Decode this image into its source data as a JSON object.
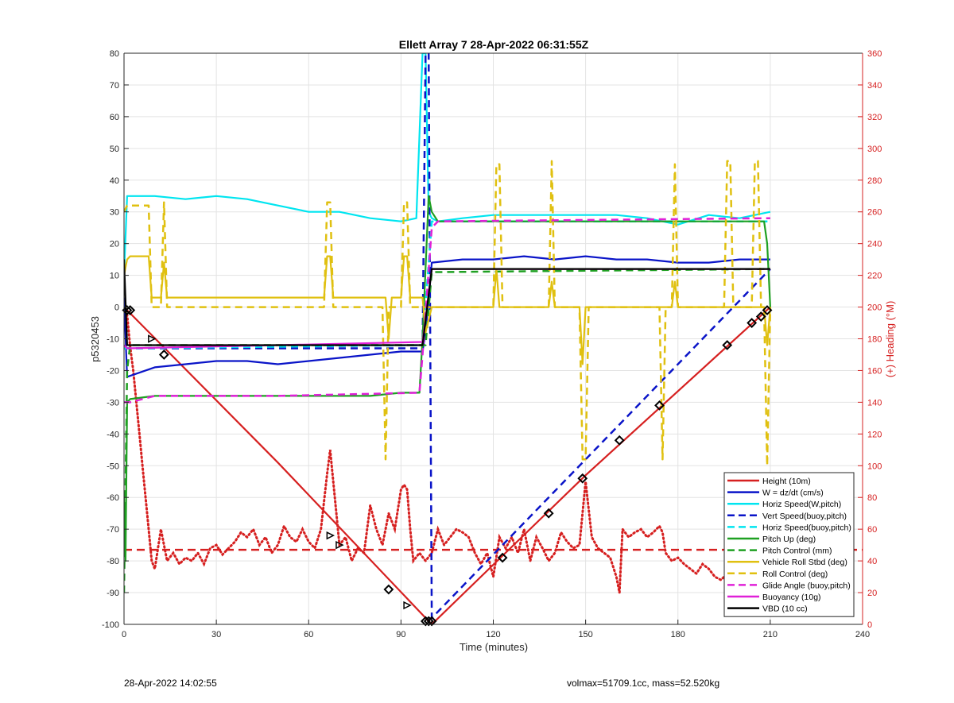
{
  "chart_data": {
    "type": "line",
    "title": "Ellett Array 7 28-Apr-2022 06:31:55Z",
    "xlabel": "Time (minutes)",
    "ylabel": "p5320453",
    "y2label": "(+) Heading (°M)",
    "xlim": [
      0,
      240
    ],
    "ylim": [
      -100,
      80
    ],
    "y2lim": [
      0,
      360
    ],
    "xticks": [
      "0",
      "30",
      "60",
      "90",
      "120",
      "150",
      "180",
      "210",
      "240"
    ],
    "yticks": [
      "-100",
      "-90",
      "-80",
      "-70",
      "-60",
      "-50",
      "-40",
      "-30",
      "-20",
      "-10",
      "0",
      "10",
      "20",
      "30",
      "40",
      "50",
      "60",
      "70",
      "80"
    ],
    "y2ticks": [
      "0",
      "20",
      "40",
      "60",
      "80",
      "100",
      "120",
      "140",
      "160",
      "180",
      "200",
      "220",
      "240",
      "260",
      "280",
      "300",
      "320",
      "340",
      "360"
    ],
    "grid": true,
    "legend_position": "bottom-right",
    "series": [
      {
        "name": "Height (10m)",
        "color": "#d62020",
        "style": "solid",
        "x": [
          0,
          1,
          50,
          99,
          100,
          150,
          210
        ],
        "y": [
          0,
          -1,
          -49,
          -99,
          -100,
          -53,
          0
        ]
      },
      {
        "name": "W = dz/dt (cm/s)",
        "color": "#0a14c8",
        "style": "solid",
        "x": [
          0,
          1,
          10,
          20,
          30,
          40,
          50,
          60,
          70,
          80,
          90,
          97,
          98,
          100,
          110,
          120,
          130,
          140,
          150,
          160,
          170,
          180,
          190,
          200,
          210
        ],
        "y": [
          3,
          -22,
          -19,
          -18,
          -17,
          -17,
          -18,
          -17,
          -16,
          -15,
          -14,
          -14,
          -8,
          14,
          15,
          15,
          16,
          15,
          16,
          15,
          15,
          14,
          14,
          15,
          15
        ]
      },
      {
        "name": "Horiz Speed(W,pitch)",
        "color": "#00e5f0",
        "style": "solid",
        "x": [
          0,
          1,
          10,
          20,
          30,
          40,
          50,
          60,
          70,
          80,
          90,
          95,
          97,
          98,
          99,
          100,
          102,
          110,
          120,
          130,
          140,
          150,
          160,
          170,
          180,
          190,
          200,
          210
        ],
        "y": [
          10,
          35,
          35,
          34,
          35,
          34,
          32,
          30,
          30,
          28,
          27,
          28,
          80,
          80,
          30,
          28,
          27,
          28,
          29,
          29,
          29,
          29,
          29,
          28,
          26,
          29,
          28,
          30
        ]
      },
      {
        "name": "Vert Speed(buoy,pitch)",
        "color": "#0a14c8",
        "style": "dashed",
        "x": [
          0,
          97,
          98,
          99,
          100,
          210
        ],
        "y": [
          -13,
          -13,
          80,
          80,
          -98,
          12
        ]
      },
      {
        "name": "Horiz Speed(buoy,pitch)",
        "color": "#00e5f0",
        "style": "dashed",
        "x": [
          0,
          97,
          100,
          210
        ],
        "y": [
          -13,
          -12,
          27,
          27
        ]
      },
      {
        "name": "Pitch Up (deg)",
        "color": "#1fa022",
        "style": "solid",
        "x": [
          0,
          0.5,
          1,
          2,
          10,
          20,
          30,
          40,
          50,
          60,
          70,
          80,
          90,
          96,
          97,
          99,
          100,
          102,
          110,
          130,
          150,
          170,
          190,
          208,
          209,
          210
        ],
        "y": [
          -60,
          -80,
          -30,
          -29,
          -28,
          -28,
          -28,
          -28,
          -28,
          -28,
          -28,
          -28,
          -27,
          -27,
          -10,
          35,
          30,
          27,
          27,
          27,
          27,
          27,
          27,
          27,
          20,
          0
        ]
      },
      {
        "name": "Pitch Control (mm)",
        "color": "#1fa022",
        "style": "dashed",
        "x": [
          0,
          1,
          2,
          98,
          100,
          210
        ],
        "y": [
          -90,
          -20,
          -12,
          -12,
          11,
          12
        ]
      },
      {
        "name": "Vehicle Roll Stbd (deg)",
        "color": "#e0c010",
        "style": "solid",
        "x": [
          0,
          1,
          2,
          8,
          9,
          12,
          13,
          14,
          15,
          60,
          65,
          66,
          67,
          68,
          70,
          80,
          85,
          86,
          87,
          90,
          91,
          92,
          93,
          97,
          98,
          100,
          102,
          110,
          120,
          121,
          122,
          123,
          130,
          138,
          139,
          140,
          148,
          149,
          150,
          151,
          160,
          170,
          175,
          178,
          179,
          180,
          190,
          200,
          208,
          209,
          210
        ],
        "y": [
          10,
          15,
          16,
          16,
          3,
          3,
          14,
          3,
          3,
          3,
          3,
          16,
          16,
          3,
          3,
          3,
          3,
          -10,
          3,
          3,
          16,
          16,
          3,
          3,
          -8,
          0,
          0,
          0,
          0,
          12,
          0,
          0,
          0,
          0,
          8,
          0,
          0,
          -18,
          0,
          0,
          0,
          0,
          0,
          0,
          8,
          0,
          0,
          0,
          0,
          -12,
          0
        ]
      },
      {
        "name": "Roll Control (deg)",
        "color": "#e0c010",
        "style": "dashed",
        "x": [
          0,
          1,
          8,
          9,
          12,
          13,
          14,
          65,
          66,
          67,
          68,
          70,
          84,
          85,
          86,
          90,
          91,
          92,
          93,
          97,
          100,
          120,
          121,
          122,
          123,
          138,
          139,
          140,
          148,
          149,
          150,
          151,
          174,
          175,
          176,
          178,
          179,
          180,
          195,
          196,
          197,
          198,
          204,
          205,
          206,
          207,
          208,
          209,
          210
        ],
        "y": [
          30,
          32,
          32,
          0,
          0,
          33,
          0,
          0,
          33,
          33,
          0,
          0,
          0,
          -48,
          0,
          0,
          33,
          33,
          0,
          0,
          0,
          0,
          45,
          45,
          0,
          0,
          46,
          0,
          0,
          -48,
          -48,
          0,
          0,
          -48,
          0,
          0,
          45,
          0,
          0,
          46,
          46,
          0,
          0,
          46,
          46,
          0,
          0,
          -50,
          0
        ]
      },
      {
        "name": "Glide Angle (buoy,pitch)",
        "color": "#e020d8",
        "style": "dashed",
        "x": [
          0,
          2,
          10,
          50,
          96,
          97,
          100,
          102,
          210
        ],
        "y": [
          -30,
          -30,
          -28,
          -28,
          -27,
          -15,
          25,
          27,
          28
        ]
      },
      {
        "name": "Buoyancy (10g)",
        "color": "#e020d8",
        "style": "solid",
        "x": [
          0,
          1,
          50,
          97,
          100,
          210
        ],
        "y": [
          -12,
          -13,
          -12,
          -11,
          12,
          12
        ]
      },
      {
        "name": "VBD (10 cc)",
        "color": "#000000",
        "style": "solid",
        "x": [
          0,
          1,
          50,
          97,
          100,
          210
        ],
        "y": [
          15,
          -12,
          -12,
          -12,
          12,
          12
        ]
      }
    ],
    "heading_series": {
      "color": "#d62020",
      "style": "dotted",
      "axis": "right",
      "x": [
        0,
        1,
        2,
        3,
        4,
        5,
        6,
        7,
        8,
        9,
        10,
        12,
        14,
        16,
        18,
        20,
        22,
        24,
        26,
        28,
        30,
        32,
        34,
        36,
        38,
        40,
        42,
        44,
        46,
        48,
        50,
        52,
        54,
        56,
        58,
        60,
        62,
        64,
        66,
        67,
        68,
        70,
        72,
        74,
        76,
        78,
        80,
        82,
        84,
        86,
        88,
        90,
        91,
        92,
        93,
        94,
        96,
        98,
        100,
        102,
        104,
        106,
        108,
        110,
        112,
        114,
        116,
        118,
        120,
        122,
        124,
        126,
        128,
        130,
        132,
        134,
        136,
        138,
        140,
        142,
        144,
        146,
        148,
        150,
        152,
        154,
        156,
        158,
        160,
        161,
        162,
        164,
        166,
        168,
        170,
        172,
        174,
        175,
        176,
        178,
        180,
        182,
        184,
        186,
        188,
        190,
        192,
        194,
        196,
        198,
        200,
        202,
        204,
        206,
        208,
        210
      ],
      "y": [
        200,
        195,
        175,
        160,
        140,
        120,
        100,
        80,
        60,
        40,
        35,
        60,
        40,
        45,
        38,
        42,
        40,
        45,
        38,
        48,
        50,
        44,
        48,
        52,
        58,
        55,
        60,
        50,
        55,
        45,
        50,
        62,
        55,
        52,
        60,
        52,
        48,
        60,
        95,
        110,
        90,
        50,
        55,
        40,
        48,
        45,
        75,
        60,
        50,
        70,
        60,
        85,
        88,
        85,
        60,
        40,
        45,
        40,
        45,
        60,
        50,
        55,
        60,
        58,
        55,
        45,
        38,
        45,
        30,
        55,
        48,
        55,
        45,
        60,
        40,
        55,
        48,
        40,
        45,
        58,
        52,
        48,
        50,
        90,
        55,
        48,
        45,
        42,
        30,
        20,
        60,
        55,
        58,
        60,
        55,
        58,
        62,
        58,
        45,
        40,
        42,
        38,
        35,
        32,
        38,
        35,
        30,
        28,
        32,
        35,
        40,
        38,
        60,
        62,
        35,
        40
      ]
    },
    "heading_reference": {
      "color": "#d62020",
      "style": "dashed",
      "y": 47
    },
    "marker_tracks": [
      {
        "name": "Height markers",
        "color": "#000000",
        "shape": "diamond",
        "x": [
          1,
          2,
          13,
          86,
          98,
          99,
          100,
          123,
          138,
          149,
          161,
          174,
          196,
          204,
          207,
          209
        ],
        "y": [
          -1,
          -1,
          -15,
          -89,
          -99,
          -99,
          -99,
          -79,
          -65,
          -54,
          -42,
          -31,
          -12,
          -5,
          -3,
          -1
        ]
      },
      {
        "name": "Height triangle markers",
        "color": "#000000",
        "shape": "triangle",
        "x": [
          9,
          67,
          70,
          92
        ],
        "y": [
          -10,
          -72,
          -75,
          -94
        ]
      }
    ]
  },
  "footer": {
    "timestamp": "28-Apr-2022 14:02:55",
    "meta": "volmax=51709.1cc, mass=52.520kg"
  }
}
